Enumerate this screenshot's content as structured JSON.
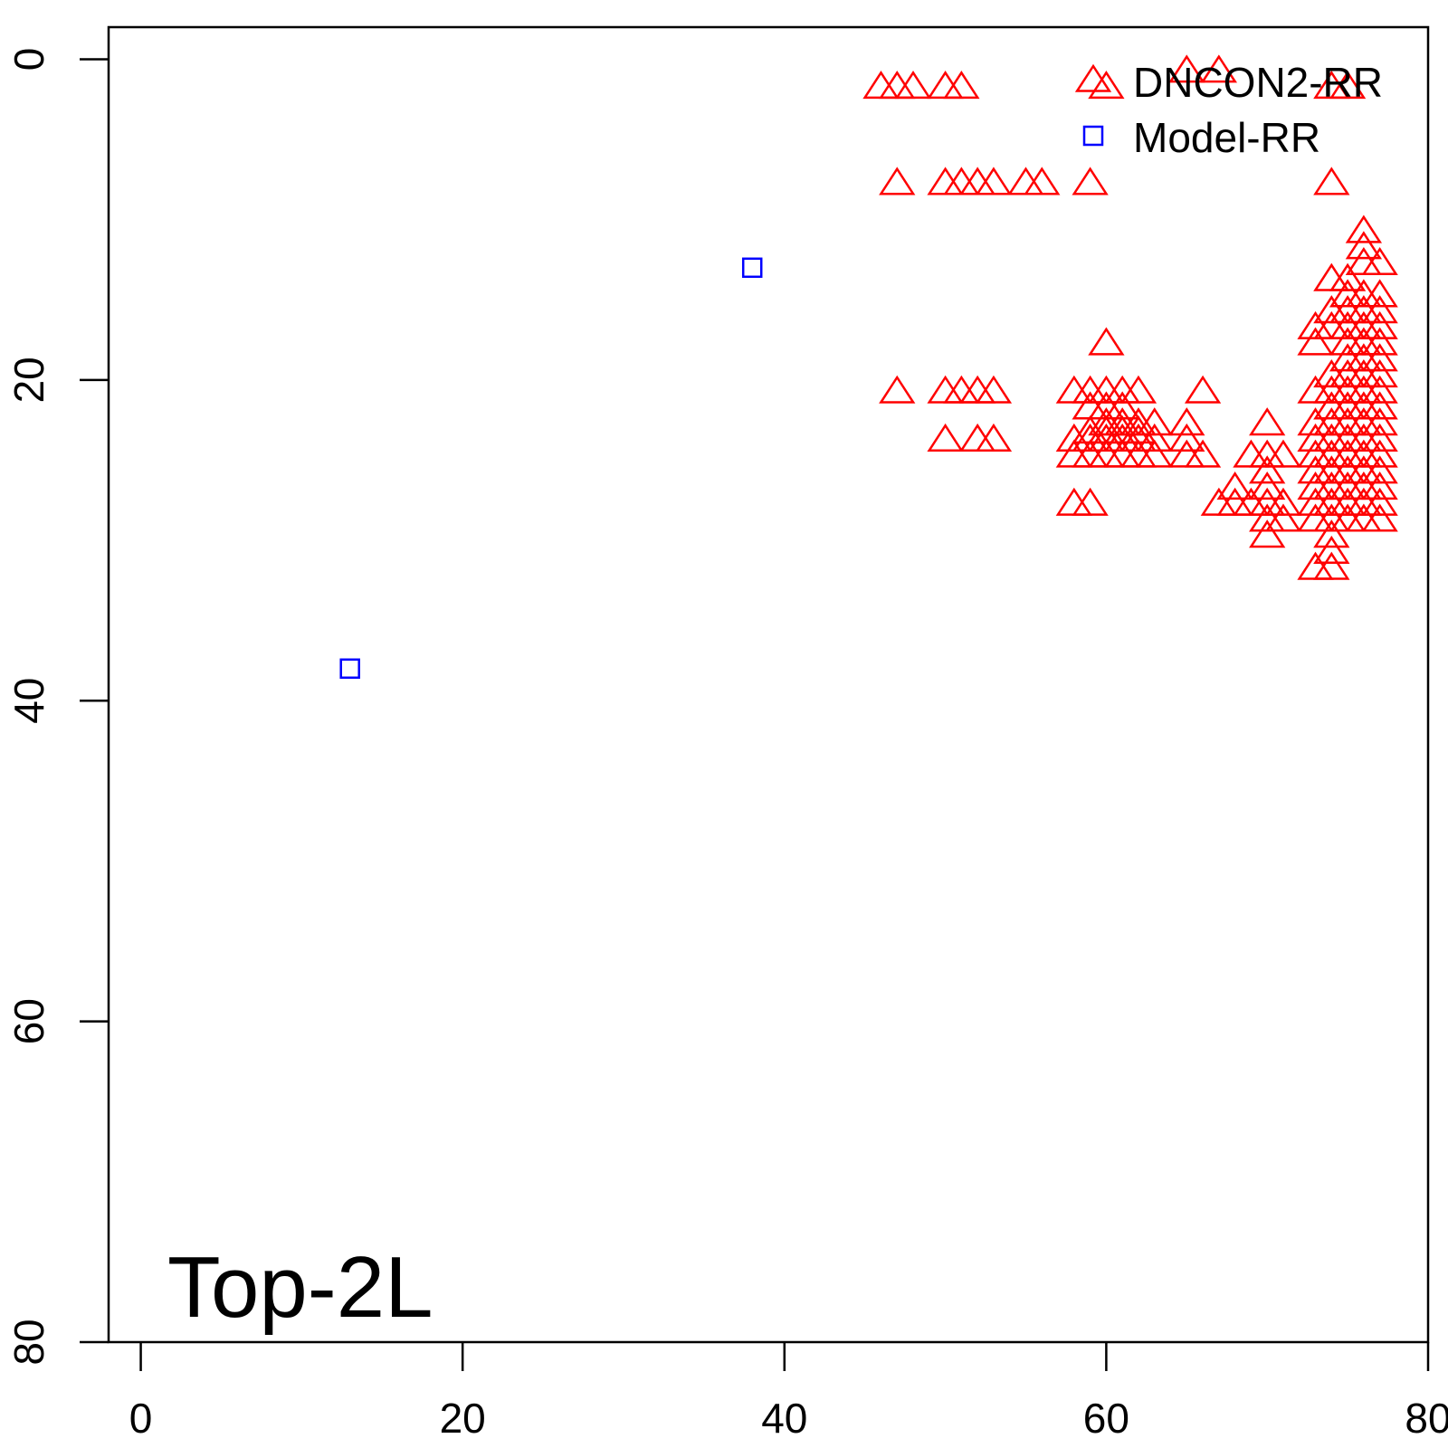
{
  "chart_data": {
    "type": "scatter",
    "title": "",
    "xlabel": "",
    "ylabel": "",
    "xlim": [
      -2,
      80
    ],
    "ylim": [
      80,
      -2
    ],
    "y_reversed": true,
    "x_ticks": [
      0,
      20,
      40,
      60,
      80
    ],
    "y_ticks": [
      0,
      20,
      40,
      60,
      80
    ],
    "x_tick_labels": [
      "0",
      "20",
      "40",
      "60",
      "80"
    ],
    "y_tick_labels": [
      "0",
      "20",
      "40",
      "60",
      "80"
    ],
    "annotation": "Top-2L",
    "legend_position": "top-right",
    "grid": false,
    "series": [
      {
        "name": "DNCON2-RR",
        "marker": "triangle",
        "color": "#ff0000",
        "points": [
          [
            46,
            1.8
          ],
          [
            47,
            1.8
          ],
          [
            48,
            1.8
          ],
          [
            50,
            1.8
          ],
          [
            51,
            1.8
          ],
          [
            60,
            1.8
          ],
          [
            65,
            0.8
          ],
          [
            67,
            0.8
          ],
          [
            74,
            1.8
          ],
          [
            75,
            1.8
          ],
          [
            47,
            7.8
          ],
          [
            50,
            7.8
          ],
          [
            51,
            7.8
          ],
          [
            52,
            7.8
          ],
          [
            53,
            7.8
          ],
          [
            55,
            7.8
          ],
          [
            56,
            7.8
          ],
          [
            59,
            7.8
          ],
          [
            74,
            7.8
          ],
          [
            76,
            10.8
          ],
          [
            76,
            11.8
          ],
          [
            76,
            12.8
          ],
          [
            75,
            13.8
          ],
          [
            77,
            12.8
          ],
          [
            74,
            13.8
          ],
          [
            75,
            14.8
          ],
          [
            76,
            14.8
          ],
          [
            77,
            14.8
          ],
          [
            74,
            15.8
          ],
          [
            75,
            15.8
          ],
          [
            76,
            15.8
          ],
          [
            77,
            15.8
          ],
          [
            73,
            16.8
          ],
          [
            74,
            16.8
          ],
          [
            75,
            16.8
          ],
          [
            76,
            16.8
          ],
          [
            77,
            16.8
          ],
          [
            73,
            17.8
          ],
          [
            75,
            17.8
          ],
          [
            76,
            17.8
          ],
          [
            77,
            17.8
          ],
          [
            60,
            17.8
          ],
          [
            75,
            18.8
          ],
          [
            76,
            18.8
          ],
          [
            77,
            18.8
          ],
          [
            74,
            19.8
          ],
          [
            75,
            19.8
          ],
          [
            76,
            19.8
          ],
          [
            77,
            19.8
          ],
          [
            47,
            20.8
          ],
          [
            50,
            20.8
          ],
          [
            51,
            20.8
          ],
          [
            52,
            20.8
          ],
          [
            53,
            20.8
          ],
          [
            58,
            20.8
          ],
          [
            59,
            20.8
          ],
          [
            60,
            20.8
          ],
          [
            61,
            20.8
          ],
          [
            62,
            20.8
          ],
          [
            66,
            20.8
          ],
          [
            73,
            20.8
          ],
          [
            74,
            20.8
          ],
          [
            75,
            20.8
          ],
          [
            76,
            20.8
          ],
          [
            77,
            20.8
          ],
          [
            59,
            21.8
          ],
          [
            60,
            21.8
          ],
          [
            61,
            21.8
          ],
          [
            74,
            21.8
          ],
          [
            75,
            21.8
          ],
          [
            76,
            21.8
          ],
          [
            77,
            21.8
          ],
          [
            60,
            22.8
          ],
          [
            61,
            22.8
          ],
          [
            62,
            22.8
          ],
          [
            63,
            22.8
          ],
          [
            65,
            22.8
          ],
          [
            70,
            22.8
          ],
          [
            73,
            22.8
          ],
          [
            74,
            22.8
          ],
          [
            75,
            22.8
          ],
          [
            76,
            22.8
          ],
          [
            77,
            22.8
          ],
          [
            59,
            23.3
          ],
          [
            60,
            23.3
          ],
          [
            61,
            23.3
          ],
          [
            62,
            23.3
          ],
          [
            50,
            23.8
          ],
          [
            52,
            23.8
          ],
          [
            53,
            23.8
          ],
          [
            58,
            23.8
          ],
          [
            59,
            23.8
          ],
          [
            60,
            23.8
          ],
          [
            61,
            23.8
          ],
          [
            62,
            23.8
          ],
          [
            63,
            23.8
          ],
          [
            65,
            23.8
          ],
          [
            73,
            23.8
          ],
          [
            74,
            23.8
          ],
          [
            75,
            23.8
          ],
          [
            76,
            23.8
          ],
          [
            77,
            23.8
          ],
          [
            58,
            24.8
          ],
          [
            59,
            24.8
          ],
          [
            60,
            24.8
          ],
          [
            61,
            24.8
          ],
          [
            62,
            24.8
          ],
          [
            63,
            24.8
          ],
          [
            65,
            24.8
          ],
          [
            66,
            24.8
          ],
          [
            69,
            24.8
          ],
          [
            70,
            24.8
          ],
          [
            71,
            24.8
          ],
          [
            73,
            24.8
          ],
          [
            74,
            24.8
          ],
          [
            75,
            24.8
          ],
          [
            76,
            24.8
          ],
          [
            77,
            24.8
          ],
          [
            70,
            25.8
          ],
          [
            73,
            25.8
          ],
          [
            74,
            25.8
          ],
          [
            75,
            25.8
          ],
          [
            76,
            25.8
          ],
          [
            77,
            25.8
          ],
          [
            68,
            26.8
          ],
          [
            70,
            26.8
          ],
          [
            73,
            26.8
          ],
          [
            74,
            26.8
          ],
          [
            75,
            26.8
          ],
          [
            76,
            26.8
          ],
          [
            77,
            26.8
          ],
          [
            58,
            27.8
          ],
          [
            59,
            27.8
          ],
          [
            67,
            27.8
          ],
          [
            68,
            27.8
          ],
          [
            69,
            27.8
          ],
          [
            70,
            27.8
          ],
          [
            71,
            27.8
          ],
          [
            73,
            27.8
          ],
          [
            74,
            27.8
          ],
          [
            75,
            27.8
          ],
          [
            76,
            27.8
          ],
          [
            77,
            27.8
          ],
          [
            70,
            28.8
          ],
          [
            71,
            28.8
          ],
          [
            73,
            28.8
          ],
          [
            74,
            28.8
          ],
          [
            75,
            28.8
          ],
          [
            76,
            28.8
          ],
          [
            77,
            28.8
          ],
          [
            70,
            29.8
          ],
          [
            74,
            29.8
          ],
          [
            74,
            30.8
          ],
          [
            73,
            31.8
          ],
          [
            74,
            31.8
          ]
        ]
      },
      {
        "name": "Model-RR",
        "marker": "square",
        "color": "#0000ff",
        "points": [
          [
            38,
            13
          ],
          [
            13,
            38
          ]
        ]
      }
    ]
  }
}
